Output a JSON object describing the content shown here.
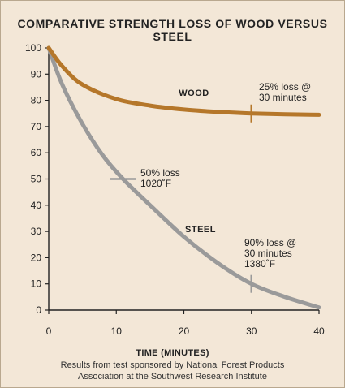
{
  "chart_data": {
    "type": "line",
    "title": "COMPARATIVE STRENGTH LOSS OF WOOD VERSUS STEEL",
    "xlabel": "TIME (MINUTES)",
    "ylabel": "",
    "xlim": [
      0,
      40
    ],
    "ylim": [
      0,
      100
    ],
    "x_ticks": [
      0,
      10,
      20,
      30,
      40
    ],
    "y_ticks": [
      0,
      10,
      20,
      30,
      40,
      50,
      60,
      70,
      80,
      90,
      100
    ],
    "grid": false,
    "series": [
      {
        "name": "WOOD",
        "color": "#b5772a",
        "x": [
          0,
          2,
          5,
          10,
          15,
          20,
          25,
          30,
          35,
          40
        ],
        "y": [
          100,
          93,
          86,
          80.5,
          78,
          76.5,
          75.6,
          75,
          74.7,
          74.5
        ]
      },
      {
        "name": "STEEL",
        "color": "#9a9a9a",
        "x": [
          0,
          2,
          5,
          8,
          11,
          15,
          20,
          25,
          30,
          35,
          40
        ],
        "y": [
          100,
          86,
          71,
          59,
          50,
          40,
          28,
          18,
          10,
          5,
          1
        ]
      }
    ],
    "annotations": [
      {
        "lines": [
          "25% loss @",
          "30 minutes"
        ],
        "marker_x": 30,
        "marker_y": 75,
        "series": "WOOD"
      },
      {
        "lines": [
          "50% loss",
          "1020˚F"
        ],
        "marker_x": 11,
        "marker_y": 50,
        "series": "STEEL"
      },
      {
        "lines": [
          "90% loss @",
          "30 minutes",
          "1380˚F"
        ],
        "marker_x": 30,
        "marker_y": 10,
        "series": "STEEL"
      }
    ]
  },
  "captions": [
    "Results from test sponsored by National Forest Products",
    "Association at the Southwest Research Institute"
  ]
}
